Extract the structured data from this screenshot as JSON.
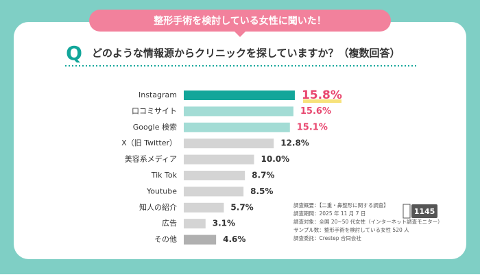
{
  "banner": "整形手術を検討している女性に聞いた！",
  "question": {
    "mark": "Q",
    "text": "どのような情報源からクリニックを探していますか？（複数回答）"
  },
  "chart_data": {
    "type": "bar",
    "orientation": "horizontal",
    "categories": [
      "Instagram",
      "口コミサイト",
      "Google 検索",
      "X（旧 Twitter）",
      "美容系メディア",
      "Tik Tok",
      "Youtube",
      "知人の紹介",
      "広告",
      "その他"
    ],
    "values": [
      15.8,
      15.6,
      15.1,
      12.8,
      10.0,
      8.7,
      8.5,
      5.7,
      3.1,
      4.6
    ],
    "value_labels": [
      "15.8%",
      "15.6%",
      "15.1%",
      "12.8%",
      "10.0%",
      "8.7%",
      "8.5%",
      "5.7%",
      "3.1%",
      "4.6%"
    ],
    "colors": [
      "#12a69a",
      "#a3dcd5",
      "#a3dcd5",
      "#d4d4d4",
      "#d4d4d4",
      "#d4d4d4",
      "#d4d4d4",
      "#d4d4d4",
      "#d4d4d4",
      "#b0b0b0"
    ],
    "label_colors": [
      "#e8476f",
      "#e8476f",
      "#e8476f",
      "#333333",
      "#333333",
      "#333333",
      "#333333",
      "#333333",
      "#333333",
      "#333333"
    ]
  },
  "notes": [
    "調査概要：【二重・鼻整形に関する調査】",
    "調査期間：2025 年 11 月 7 日",
    "調査対象：全国 20~50 代女性（インターネット調査モニター）",
    "サンプル数：整形手術を検討している女性 520 人",
    "調査委託：Crestep 合同会社"
  ],
  "badge": "1145"
}
